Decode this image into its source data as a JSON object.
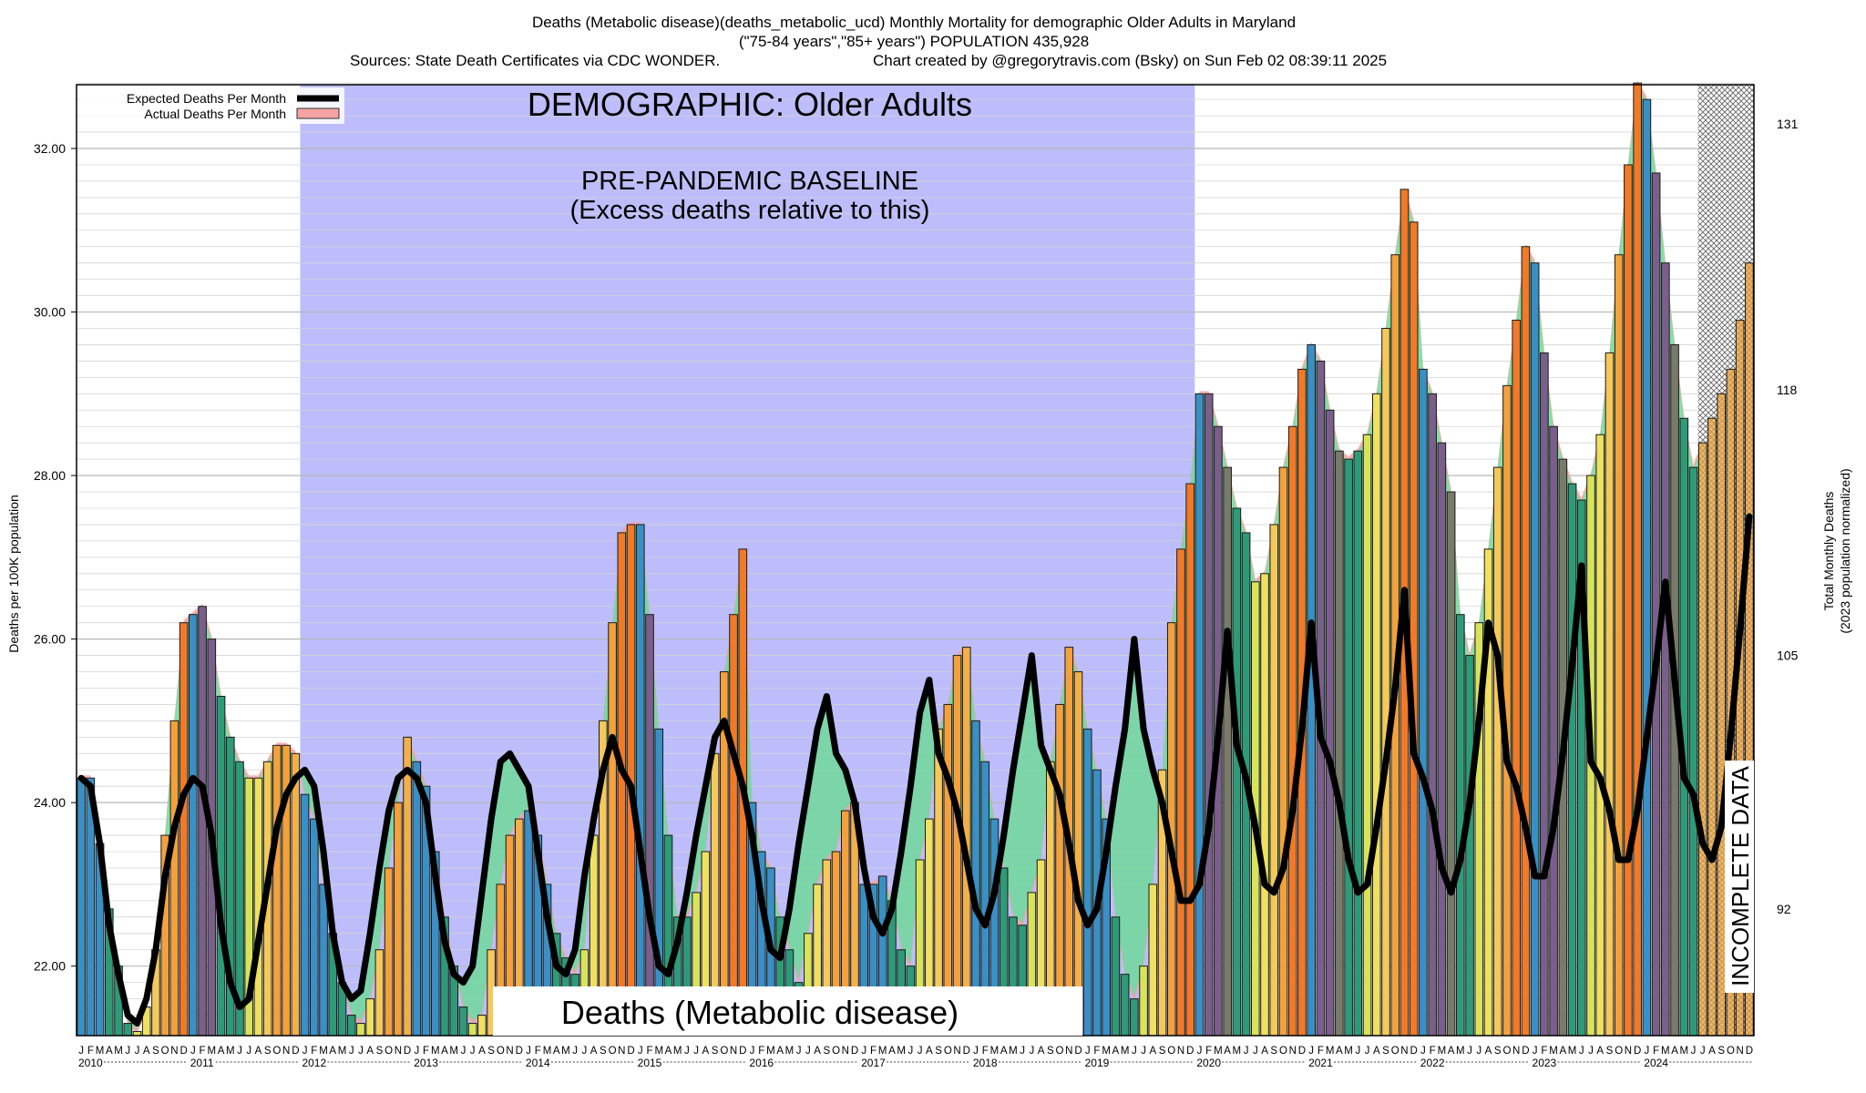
{
  "header": {
    "line1": "Deaths (Metabolic disease)(deaths_metabolic_ucd) Monthly Mortality for demographic Older Adults in Maryland",
    "line2": "(\"75-84 years\",\"85+ years\") POPULATION 435,928",
    "line3a": "Sources: State Death Certificates via CDC WONDER.",
    "line3b": "Chart created by @gregorytravis.com (Bsky) on Sun Feb 02 08:39:11 2025"
  },
  "legend": {
    "expected": "Expected Deaths Per Month",
    "actual": "Actual Deaths Per Month"
  },
  "annotations": {
    "demographic": "DEMOGRAPHIC: Older Adults",
    "baseline_1": "PRE-PANDEMIC BASELINE",
    "baseline_2": "(Excess deaths relative to this)",
    "bottom_label": "Deaths (Metabolic disease)",
    "incomplete": "INCOMPLETE DATA"
  },
  "chart_data": {
    "type": "bar",
    "title": "Deaths (Metabolic disease)(deaths_metabolic_ucd) Monthly Mortality for demographic Older Adults in Maryland",
    "ylabel": "Deaths per 100K population",
    "y2label_1": "Total Monthly Deaths",
    "y2label_2": "(2023 population normalized)",
    "ylim": [
      21.15,
      32.78
    ],
    "yticks": [
      "22.00",
      "24.00",
      "26.00",
      "28.00",
      "30.00",
      "32.00"
    ],
    "yticks_values": [
      22,
      24,
      26,
      28,
      30,
      32
    ],
    "y2ticks": [
      "92",
      "105",
      "118",
      "131"
    ],
    "y2ticks_values": [
      22.7,
      25.8,
      29.05,
      32.3
    ],
    "month_letters": [
      "J",
      "F",
      "M",
      "A",
      "M",
      "J",
      "J",
      "A",
      "S",
      "O",
      "N",
      "D"
    ],
    "years": [
      "2010",
      "2011",
      "2012",
      "2013",
      "2014",
      "2015",
      "2016",
      "2017",
      "2018",
      "2019",
      "2020",
      "2021",
      "2022",
      "2023",
      "2024"
    ],
    "baseline_period": [
      "2012-01",
      "2019-12"
    ],
    "incomplete_from": "2024-07",
    "grid": true,
    "legend_position": "top-left",
    "colors": {
      "baseline_shade": "#bdbdfc",
      "expected_line": "#000000",
      "actual_band": "#f5a3a3",
      "excess_fill_low": "#70d99a",
      "winter_blue": "#3a8fc4",
      "winter_purple": "#7a5f8a",
      "spring_teal": "#2e9a78",
      "summer_yellow": "#f0e060",
      "fall_orange": "#f2a13c",
      "peak_orange": "#f07a28",
      "slate": "#7a7a6a"
    },
    "series": [
      {
        "name": "Actual Deaths Per Month",
        "values": [
          24.3,
          24.3,
          23.5,
          22.7,
          22.0,
          21.3,
          21.2,
          21.5,
          22.2,
          23.6,
          25.0,
          26.2,
          26.3,
          26.4,
          26.0,
          25.3,
          24.8,
          24.5,
          24.3,
          24.3,
          24.5,
          24.7,
          24.7,
          24.6,
          24.1,
          23.8,
          23.0,
          22.4,
          21.8,
          21.4,
          21.3,
          21.6,
          22.2,
          23.2,
          24.0,
          24.8,
          24.5,
          24.2,
          23.4,
          22.6,
          22.0,
          21.5,
          21.3,
          21.4,
          22.2,
          23.0,
          23.6,
          23.8,
          23.9,
          23.6,
          23.0,
          22.4,
          22.1,
          21.9,
          22.2,
          23.6,
          25.0,
          26.2,
          27.3,
          27.4,
          27.4,
          26.3,
          24.9,
          23.6,
          22.6,
          22.6,
          22.9,
          23.4,
          24.6,
          25.6,
          26.3,
          27.1,
          24.0,
          23.4,
          23.2,
          22.6,
          22.2,
          21.8,
          22.4,
          23.0,
          23.3,
          23.4,
          23.9,
          24.0,
          23.0,
          23.0,
          23.1,
          22.8,
          22.2,
          22.0,
          23.3,
          23.8,
          24.9,
          25.2,
          25.8,
          25.9,
          25.0,
          24.5,
          23.8,
          23.2,
          22.6,
          22.5,
          22.9,
          23.3,
          24.5,
          25.2,
          25.9,
          25.6,
          24.9,
          24.4,
          23.8,
          22.6,
          21.9,
          21.6,
          22.0,
          23.0,
          24.4,
          26.2,
          27.1,
          27.9,
          29.0,
          29.0,
          28.6,
          28.1,
          27.6,
          27.3,
          26.7,
          26.8,
          27.4,
          28.1,
          28.6,
          29.3,
          29.6,
          29.4,
          28.8,
          28.3,
          28.2,
          28.3,
          28.5,
          29.0,
          29.8,
          30.7,
          31.5,
          31.1,
          29.3,
          29.0,
          28.4,
          27.8,
          26.3,
          25.8,
          26.2,
          27.1,
          28.1,
          29.1,
          29.9,
          30.8,
          30.6,
          29.5,
          28.6,
          28.2,
          27.9,
          27.7,
          28.0,
          28.5,
          29.5,
          30.7,
          31.8,
          32.8,
          32.6,
          31.7,
          30.6,
          29.6,
          28.7,
          28.1,
          28.4,
          28.7,
          29.0,
          29.3,
          29.9,
          30.6
        ]
      },
      {
        "name": "Expected Deaths Per Month",
        "values": [
          24.3,
          24.2,
          23.5,
          22.5,
          21.9,
          21.4,
          21.3,
          21.6,
          22.2,
          23.1,
          23.7,
          24.1,
          24.3,
          24.2,
          23.6,
          22.5,
          21.8,
          21.5,
          21.6,
          22.3,
          23.0,
          23.7,
          24.1,
          24.3,
          24.4,
          24.2,
          23.4,
          22.4,
          21.8,
          21.6,
          21.7,
          22.4,
          23.2,
          23.9,
          24.3,
          24.4,
          24.3,
          24.0,
          23.1,
          22.3,
          21.9,
          21.8,
          22.0,
          22.9,
          23.8,
          24.5,
          24.6,
          24.4,
          24.2,
          23.4,
          22.6,
          22.0,
          21.9,
          22.2,
          23.1,
          23.8,
          24.4,
          24.8,
          24.4,
          24.2,
          23.4,
          22.6,
          22.0,
          21.9,
          22.3,
          22.9,
          23.6,
          24.2,
          24.8,
          25.0,
          24.6,
          24.2,
          23.6,
          22.8,
          22.2,
          22.1,
          22.7,
          23.5,
          24.2,
          24.9,
          25.3,
          24.6,
          24.4,
          24.0,
          23.2,
          22.6,
          22.4,
          22.7,
          23.4,
          24.2,
          25.1,
          25.5,
          24.6,
          24.3,
          23.9,
          23.3,
          22.7,
          22.5,
          22.9,
          23.6,
          24.4,
          25.1,
          25.8,
          24.7,
          24.4,
          24.1,
          23.5,
          22.8,
          22.5,
          22.7,
          23.4,
          24.2,
          24.9,
          26.0,
          24.9,
          24.4,
          24.0,
          23.4,
          22.8,
          22.8,
          23.0,
          23.7,
          24.8,
          26.1,
          24.7,
          24.3,
          23.7,
          23.0,
          22.9,
          23.2,
          23.9,
          24.9,
          26.2,
          24.8,
          24.5,
          24.0,
          23.3,
          22.9,
          23.0,
          23.7,
          24.5,
          25.4,
          26.6,
          24.6,
          24.3,
          23.9,
          23.2,
          22.9,
          23.3,
          24.0,
          25.0,
          26.2,
          25.8,
          24.5,
          24.2,
          23.7,
          23.1,
          23.1,
          23.7,
          24.6,
          25.7,
          26.9,
          24.5,
          24.3,
          23.9,
          23.3,
          23.3,
          23.9,
          24.8,
          25.7,
          26.7,
          25.5,
          24.3,
          24.1,
          23.5,
          23.3,
          23.7,
          24.8,
          26.1,
          27.5
        ]
      }
    ]
  }
}
